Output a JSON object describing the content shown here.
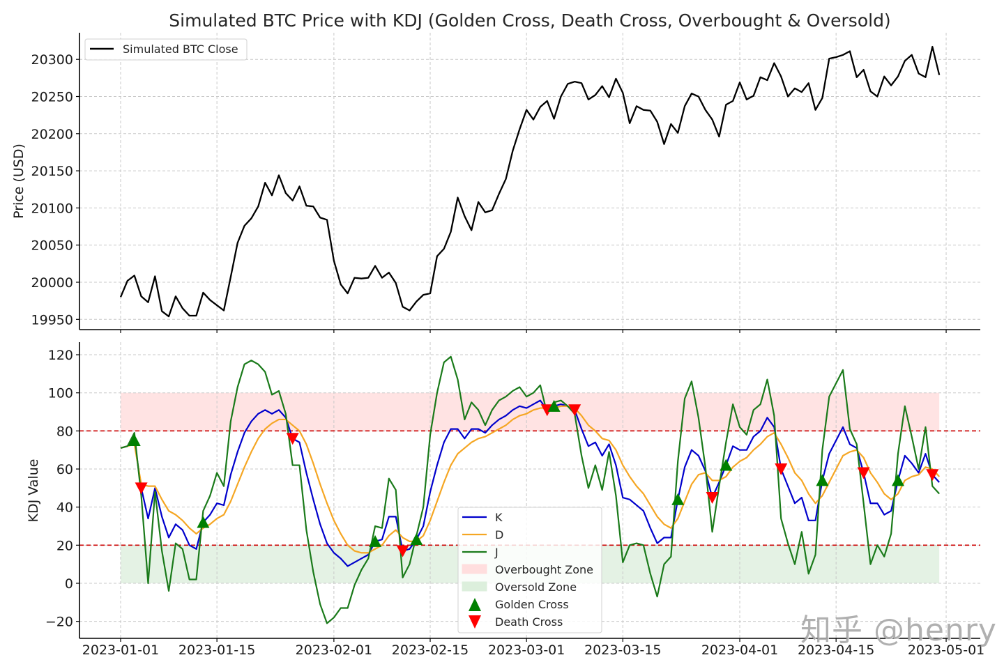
{
  "chart_data": [
    {
      "type": "line",
      "title": "Simulated BTC Price with KDJ (Golden Cross, Death Cross, Overbought & Oversold)",
      "xlabel": "",
      "ylabel": "Price (USD)",
      "start_date": "2023-01-01",
      "x_tick_labels": [
        "2023-01-01",
        "2023-01-15",
        "2023-02-01",
        "2023-02-15",
        "2023-03-01",
        "2023-03-15",
        "2023-04-01",
        "2023-04-15",
        "2023-05-01"
      ],
      "x_tick_days": [
        0,
        14,
        31,
        45,
        59,
        73,
        90,
        104,
        120
      ],
      "y_ticks": [
        19950,
        20000,
        20050,
        20100,
        20150,
        20200,
        20250,
        20300
      ],
      "ylim": [
        19935,
        20335
      ],
      "grid": true,
      "legend_position": "top-left",
      "series": [
        {
          "name": "Simulated BTC Close",
          "color": "#000000",
          "values": [
            19980,
            20002,
            20009,
            19981,
            19973,
            20008,
            19961,
            19954,
            19981,
            19965,
            19955,
            19955,
            19986,
            19976,
            19969,
            19962,
            20007,
            20053,
            20076,
            20086,
            20102,
            20134,
            20117,
            20144,
            20120,
            20110,
            20129,
            20103,
            20102,
            20087,
            20084,
            20029,
            19997,
            19985,
            20006,
            20005,
            20006,
            20022,
            20006,
            20013,
            19999,
            19967,
            19962,
            19974,
            19983,
            19985,
            20035,
            20045,
            20068,
            20114,
            20089,
            20070,
            20108,
            20094,
            20097,
            20119,
            20139,
            20177,
            20206,
            20232,
            20219,
            20236,
            20244,
            20220,
            20250,
            20267,
            20270,
            20268,
            20246,
            20252,
            20264,
            20249,
            20274,
            20255,
            20214,
            20237,
            20232,
            20231,
            20216,
            20186,
            20213,
            20201,
            20237,
            20254,
            20250,
            20232,
            20219,
            20196,
            20239,
            20244,
            20269,
            20246,
            20251,
            20276,
            20272,
            20295,
            20277,
            20250,
            20261,
            20256,
            20268,
            20232,
            20248,
            20301,
            20303,
            20306,
            20311,
            20276,
            20286,
            20257,
            20250,
            20277,
            20265,
            20277,
            20298,
            20306,
            20281,
            20276,
            20317,
            20279
          ]
        }
      ]
    },
    {
      "type": "line",
      "title": "",
      "xlabel": "",
      "ylabel": "KDJ Value",
      "start_date": "2023-01-01",
      "x_tick_labels": [
        "2023-01-01",
        "2023-01-15",
        "2023-02-01",
        "2023-02-15",
        "2023-03-01",
        "2023-03-15",
        "2023-04-01",
        "2023-04-15",
        "2023-05-01"
      ],
      "x_tick_days": [
        0,
        14,
        31,
        45,
        59,
        73,
        90,
        104,
        120
      ],
      "y_ticks": [
        -20,
        0,
        20,
        40,
        60,
        80,
        100,
        120
      ],
      "y_tick_labels": [
        "−20",
        "0",
        "20",
        "40",
        "60",
        "80",
        "100",
        "120"
      ],
      "ylim": [
        -28,
        127
      ],
      "grid": true,
      "legend_position": "bottom-center",
      "thresholds": {
        "overbought": 80,
        "oversold": 20,
        "color": "#cc0000"
      },
      "zones": [
        {
          "name": "Overbought Zone",
          "from": 80,
          "to": 100,
          "color": "#ffcccc"
        },
        {
          "name": "Oversold Zone",
          "from": 0,
          "to": 20,
          "color": "#c9e6c9"
        }
      ],
      "series": [
        {
          "name": "K",
          "color": "#0000cc",
          "values": [
            71,
            72,
            75,
            50,
            34,
            50,
            35,
            24,
            31,
            28,
            20,
            18,
            32,
            36,
            42,
            41,
            57,
            69,
            79,
            85,
            89,
            91,
            89,
            91,
            87,
            76,
            74,
            58,
            44,
            31,
            21,
            16,
            13,
            9,
            11,
            13,
            15,
            22,
            23,
            35,
            35,
            17,
            18,
            23,
            30,
            48,
            62,
            74,
            81,
            81,
            76,
            81,
            81,
            79,
            83,
            86,
            88,
            91,
            93,
            92,
            94,
            96,
            91,
            93,
            94,
            93,
            91,
            81,
            72,
            74,
            67,
            73,
            62,
            45,
            44,
            41,
            38,
            29,
            21,
            24,
            24,
            44,
            61,
            70,
            67,
            59,
            45,
            53,
            62,
            72,
            70,
            70,
            77,
            80,
            87,
            82,
            60,
            51,
            42,
            45,
            33,
            33,
            54,
            68,
            75,
            82,
            73,
            71,
            58,
            42,
            42,
            36,
            38,
            54,
            67,
            63,
            58,
            68,
            57,
            53
          ]
        },
        {
          "name": "D",
          "color": "#f5a623",
          "values": [
            71,
            72,
            73,
            52,
            51,
            51,
            44,
            38,
            36,
            33,
            29,
            26,
            29,
            31,
            34,
            36,
            43,
            52,
            61,
            69,
            76,
            81,
            84,
            86,
            86,
            83,
            80,
            73,
            63,
            52,
            42,
            33,
            26,
            20,
            17,
            16,
            16,
            18,
            20,
            25,
            28,
            24,
            22,
            22,
            25,
            33,
            43,
            53,
            62,
            68,
            71,
            74,
            76,
            77,
            79,
            81,
            83,
            86,
            88,
            89,
            91,
            92,
            92,
            92,
            93,
            93,
            92,
            88,
            83,
            80,
            76,
            75,
            70,
            62,
            56,
            51,
            47,
            41,
            35,
            31,
            29,
            34,
            43,
            52,
            57,
            58,
            54,
            54,
            56,
            61,
            64,
            66,
            70,
            73,
            77,
            79,
            73,
            66,
            58,
            54,
            47,
            42,
            46,
            53,
            60,
            67,
            69,
            70,
            66,
            58,
            53,
            47,
            44,
            47,
            54,
            56,
            57,
            61,
            60,
            56
          ]
        },
        {
          "name": "J",
          "color": "#1a7a1a",
          "values": [
            71,
            72,
            79,
            46,
            0,
            48,
            17,
            -4,
            21,
            18,
            2,
            2,
            38,
            46,
            58,
            51,
            85,
            103,
            115,
            117,
            115,
            111,
            99,
            101,
            89,
            62,
            62,
            28,
            6,
            -11,
            -21,
            -18,
            -13,
            -13,
            -1,
            7,
            13,
            30,
            29,
            55,
            49,
            3,
            10,
            25,
            40,
            78,
            100,
            116,
            119,
            107,
            86,
            95,
            91,
            83,
            91,
            96,
            98,
            101,
            103,
            98,
            100,
            104,
            89,
            95,
            96,
            93,
            89,
            67,
            50,
            62,
            49,
            69,
            46,
            11,
            20,
            21,
            20,
            5,
            -7,
            10,
            14,
            64,
            97,
            106,
            87,
            61,
            27,
            51,
            74,
            94,
            82,
            78,
            91,
            94,
            107,
            88,
            34,
            21,
            10,
            27,
            5,
            15,
            70,
            98,
            105,
            112,
            81,
            73,
            42,
            10,
            20,
            14,
            26,
            68,
            93,
            77,
            60,
            82,
            51,
            47
          ]
        }
      ],
      "legend": [
        {
          "label": "K",
          "kind": "line",
          "color": "#0000cc"
        },
        {
          "label": "D",
          "kind": "line",
          "color": "#f5a623"
        },
        {
          "label": "J",
          "kind": "line",
          "color": "#1a7a1a"
        },
        {
          "label": "Overbought Zone",
          "kind": "patch",
          "color": "#ffdede"
        },
        {
          "label": "Oversold Zone",
          "kind": "patch",
          "color": "#dcefdc"
        },
        {
          "label": "Golden Cross",
          "kind": "marker-up",
          "color": "#008000"
        },
        {
          "label": "Death Cross",
          "kind": "marker-down",
          "color": "#ff0000"
        }
      ],
      "markers": {
        "golden_cross_color": "#008000",
        "death_cross_color": "#ff0000"
      }
    }
  ],
  "watermark": "知乎 @henry"
}
